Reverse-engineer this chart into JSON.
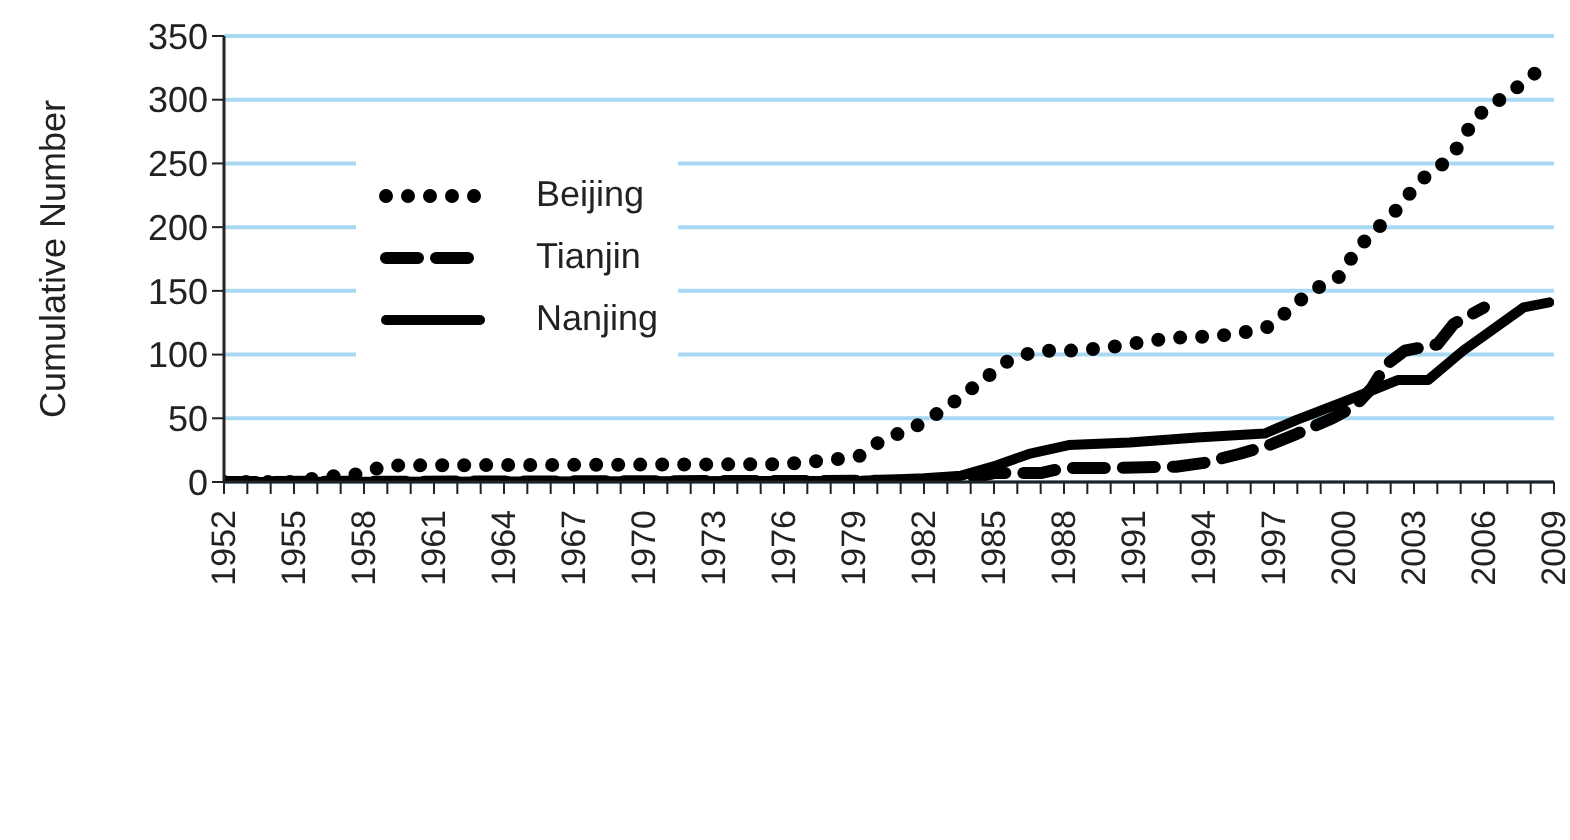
{
  "chart_data": {
    "type": "line",
    "ylabel": "Cumulative Number",
    "xlim": [
      1952,
      2009
    ],
    "ylim": [
      0,
      350
    ],
    "yticks": [
      0,
      50,
      100,
      150,
      200,
      250,
      300,
      350
    ],
    "xticks": [
      1952,
      {
        "value": 1953,
        "label": null
      },
      {
        "value": 1954,
        "label": null
      },
      1955,
      {
        "value": 1956,
        "label": null
      },
      {
        "value": 1957,
        "label": null
      },
      1958,
      {
        "value": 1959,
        "label": null
      },
      {
        "value": 1960,
        "label": null
      },
      1961,
      {
        "value": 1962,
        "label": null
      },
      {
        "value": 1963,
        "label": null
      },
      1964,
      {
        "value": 1965,
        "label": null
      },
      {
        "value": 1966,
        "label": null
      },
      1967,
      {
        "value": 1968,
        "label": null
      },
      {
        "value": 1969,
        "label": null
      },
      1970,
      {
        "value": 1971,
        "label": null
      },
      {
        "value": 1972,
        "label": null
      },
      1973,
      {
        "value": 1974,
        "label": null
      },
      {
        "value": 1975,
        "label": null
      },
      1976,
      {
        "value": 1977,
        "label": null
      },
      {
        "value": 1978,
        "label": null
      },
      1979,
      {
        "value": 1980,
        "label": null
      },
      {
        "value": 1981,
        "label": null
      },
      1982,
      {
        "value": 1983,
        "label": null
      },
      {
        "value": 1984,
        "label": null
      },
      1985,
      {
        "value": 1986,
        "label": null
      },
      {
        "value": 1987,
        "label": null
      },
      1988,
      {
        "value": 1989,
        "label": null
      },
      {
        "value": 1990,
        "label": null
      },
      1991,
      {
        "value": 1992,
        "label": null
      },
      {
        "value": 1993,
        "label": null
      },
      1994,
      {
        "value": 1995,
        "label": null
      },
      {
        "value": 1996,
        "label": null
      },
      1997,
      {
        "value": 1998,
        "label": null
      },
      {
        "value": 1999,
        "label": null
      },
      2000,
      {
        "value": 2001,
        "label": null
      },
      {
        "value": 2002,
        "label": null
      },
      2003,
      {
        "value": 2004,
        "label": null
      },
      {
        "value": 2005,
        "label": null
      },
      2006,
      {
        "value": 2007,
        "label": null
      },
      {
        "value": 2008,
        "label": null
      },
      2009
    ],
    "grid": "y",
    "legend": "top left",
    "series": [
      {
        "name": "Beijing",
        "color": "#000000",
        "line_style": "dotted",
        "x": [
          1952,
          1955,
          1956.3,
          1957.7,
          1959,
          1976,
          1977.8,
          1979.2,
          1980.2,
          1981.5,
          1982.6,
          1983.6,
          1984.6,
          1985.5,
          1986.8,
          1988.2,
          1989.7,
          1991.1,
          1992.5,
          1994,
          1995.4,
          1996.8,
          1997.7,
          1998.6,
          1999.8,
          2000.4,
          2001.1,
          2002,
          2002.7,
          2003.5,
          2004.5,
          2005.1,
          2005.6,
          2006.6,
          2007.6,
          2008.6
        ],
        "values": [
          0,
          0,
          4,
          6,
          13,
          14,
          17,
          20,
          33,
          42,
          54,
          67,
          81,
          94,
          103,
          103,
          105,
          109,
          113,
          114,
          116,
          122,
          136,
          150,
          161,
          178,
          194,
          208,
          224,
          240,
          253,
          269,
          286,
          299,
          312,
          327
        ]
      },
      {
        "name": "Tianjin",
        "color": "#000000",
        "line_style": "dashed",
        "x": [
          1952,
          1982,
          1984,
          1985,
          1987,
          1988,
          1990,
          1992.8,
          1994,
          1995.5,
          1996.8,
          1998,
          1999.5,
          2000.5,
          2001.2,
          2001.8,
          2002.6,
          2004,
          2004.7,
          2006
        ],
        "values": [
          0,
          1,
          3,
          7,
          7,
          11,
          11,
          12,
          15,
          22,
          29,
          38,
          50,
          60,
          74,
          92,
          103,
          108,
          124,
          137
        ]
      },
      {
        "name": "Nanjing",
        "color": "#000000",
        "line_style": "solid",
        "x": [
          1952,
          1979.3,
          1982,
          1983.6,
          1985.1,
          1986.5,
          1988.2,
          1990.8,
          1993.7,
          1996.6,
          1998,
          2000,
          2002.3,
          2003.6,
          2005.1,
          2007.7,
          2008.8
        ],
        "values": [
          0,
          1,
          3,
          5,
          13,
          22,
          29,
          31,
          35,
          38,
          49,
          63,
          80,
          80,
          103,
          137,
          141
        ]
      }
    ]
  }
}
